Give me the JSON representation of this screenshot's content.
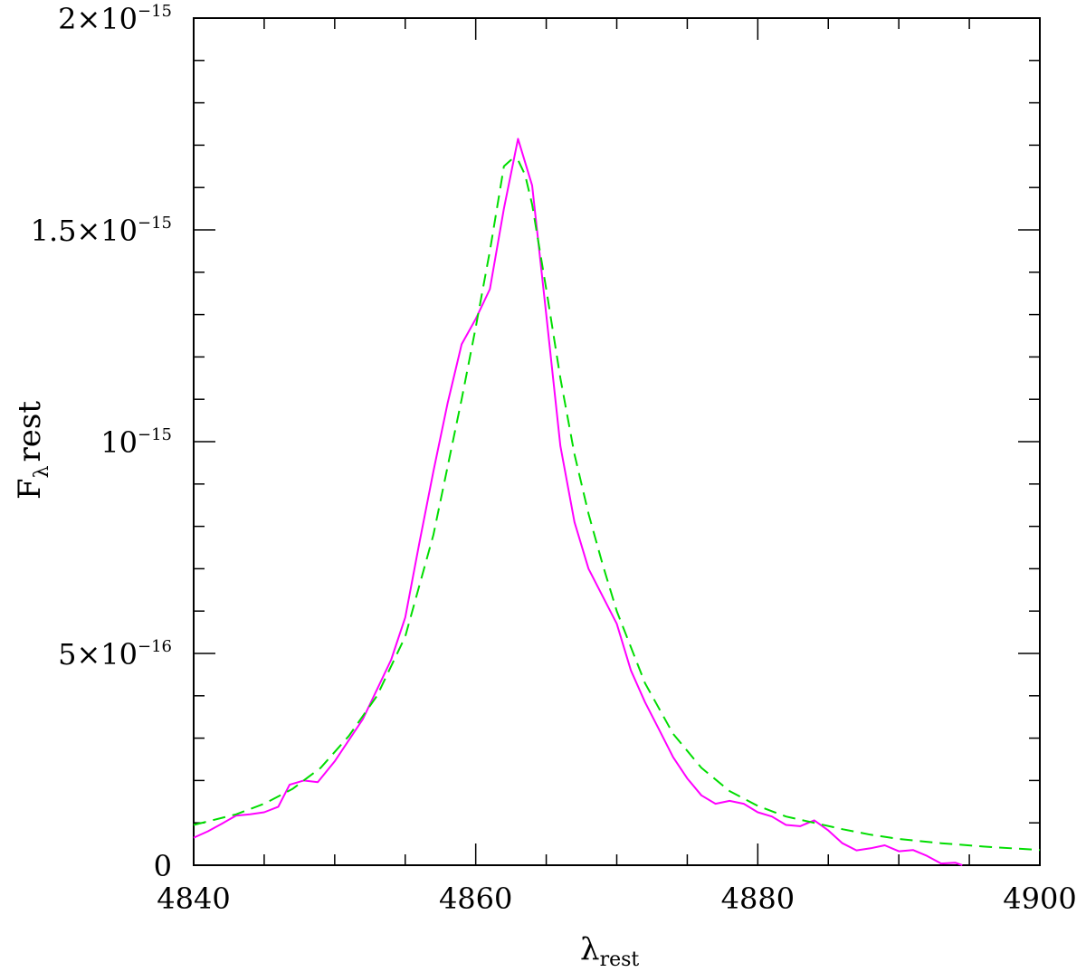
{
  "chart_data": {
    "type": "line",
    "xlabel": "λ",
    "xlabel_sub": "rest",
    "ylabel": "F",
    "ylabel_sub": "λ",
    "ylabel_tail": "rest",
    "xlim": [
      4840,
      4900
    ],
    "ylim": [
      0,
      2e-15
    ],
    "x_ticks": [
      {
        "value": 4840,
        "label": "4840"
      },
      {
        "value": 4860,
        "label": "4860"
      },
      {
        "value": 4880,
        "label": "4880"
      },
      {
        "value": 4900,
        "label": "4900"
      }
    ],
    "y_ticks": [
      {
        "value": 0,
        "mantissa": "0",
        "exp": ""
      },
      {
        "value": 5e-16,
        "mantissa": "5×10",
        "exp": "−16"
      },
      {
        "value": 1e-15,
        "mantissa": "10",
        "exp": "−15"
      },
      {
        "value": 1.5e-15,
        "mantissa": "1.5×10",
        "exp": "−15"
      },
      {
        "value": 2e-15,
        "mantissa": "2×10",
        "exp": "−15"
      }
    ],
    "series": [
      {
        "style": "solid",
        "color": "#ff00ff",
        "x": [
          4840,
          4841,
          4842,
          4843,
          4844,
          4845,
          4846,
          4846.8,
          4847.8,
          4848.8,
          4850,
          4851,
          4852,
          4853,
          4854,
          4855,
          4856,
          4857,
          4858,
          4859,
          4860,
          4861,
          4862,
          4863,
          4864,
          4865,
          4866,
          4867,
          4868,
          4869,
          4870,
          4871,
          4872,
          4873,
          4874,
          4875,
          4876,
          4877,
          4878,
          4879,
          4880,
          4881,
          4882,
          4883,
          4884,
          4885,
          4886,
          4887,
          4888,
          4889,
          4890,
          4891,
          4892,
          4893,
          4894,
          4894.5
        ],
        "y": [
          6.5e-17,
          8e-17,
          9.8e-17,
          1.17e-16,
          1.2e-16,
          1.25e-16,
          1.38e-16,
          1.9e-16,
          2e-16,
          1.96e-16,
          2.45e-16,
          2.95e-16,
          3.45e-16,
          4.15e-16,
          4.85e-16,
          5.85e-16,
          7.6e-16,
          9.3e-16,
          1.09e-15,
          1.23e-15,
          1.29e-15,
          1.36e-15,
          1.55e-15,
          1.715e-15,
          1.605e-15,
          1.3e-15,
          9.9e-16,
          8.1e-16,
          7e-16,
          6.35e-16,
          5.7e-16,
          4.6e-16,
          3.85e-16,
          3.2e-16,
          2.55e-16,
          2.05e-16,
          1.65e-16,
          1.45e-16,
          1.52e-16,
          1.45e-16,
          1.25e-16,
          1.15e-16,
          9.5e-17,
          9.2e-17,
          1.06e-16,
          8.2e-17,
          5.2e-17,
          3.5e-17,
          4e-17,
          4.7e-17,
          3.3e-17,
          3.6e-17,
          2.2e-17,
          4e-18,
          6e-18,
          0
        ]
      },
      {
        "style": "dashed",
        "color": "#00dd00",
        "x": [
          4840,
          4843,
          4845,
          4847,
          4849,
          4851,
          4853,
          4855,
          4857,
          4859,
          4860,
          4861,
          4862,
          4862.5,
          4863,
          4863.5,
          4864,
          4865,
          4866,
          4867,
          4868,
          4869,
          4870,
          4872,
          4874,
          4876,
          4878,
          4880,
          4882,
          4884,
          4886,
          4888,
          4890,
          4893,
          4896,
          4900
        ],
        "y": [
          9.5e-17,
          1.2e-16,
          1.45e-16,
          1.8e-16,
          2.3e-16,
          3.05e-16,
          4e-16,
          5.4e-16,
          7.8e-16,
          1.1e-15,
          1.27e-15,
          1.45e-15,
          1.65e-15,
          1.665e-15,
          1.665e-15,
          1.63e-15,
          1.56e-15,
          1.36e-15,
          1.15e-15,
          9.7e-16,
          8.3e-16,
          7.1e-16,
          6e-16,
          4.3e-16,
          3.1e-16,
          2.3e-16,
          1.75e-16,
          1.4e-16,
          1.15e-16,
          1e-16,
          8.5e-17,
          7.2e-17,
          6.2e-17,
          5.2e-17,
          4.4e-17,
          3.6e-17
        ]
      }
    ]
  }
}
